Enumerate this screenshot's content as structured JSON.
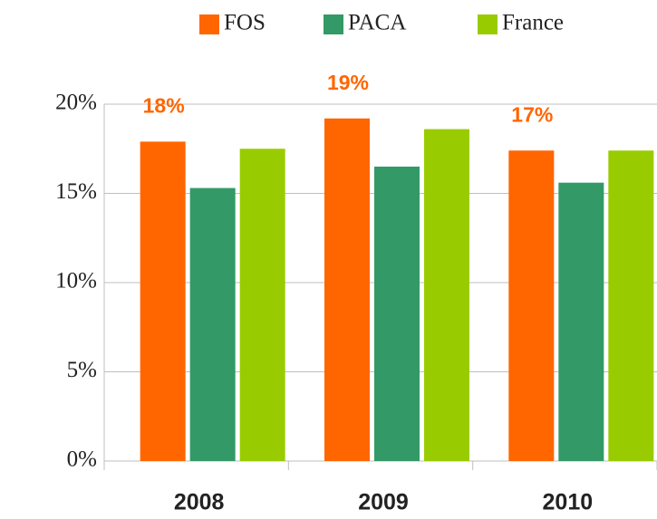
{
  "chart_data": {
    "type": "bar",
    "categories": [
      "2008",
      "2009",
      "2010"
    ],
    "series": [
      {
        "name": "FOS",
        "color": "#ff6600",
        "values": [
          17.9,
          19.2,
          17.4
        ],
        "value_labels": [
          "18%",
          "19%",
          "17%"
        ]
      },
      {
        "name": "PACA",
        "color": "#339966",
        "values": [
          15.3,
          16.5,
          15.6
        ]
      },
      {
        "name": "France",
        "color": "#99cc00",
        "values": [
          17.5,
          18.6,
          17.4
        ]
      }
    ],
    "ylim": [
      0,
      20
    ],
    "yticks": [
      {
        "value": 0,
        "label": "0%"
      },
      {
        "value": 5,
        "label": "5%"
      },
      {
        "value": 10,
        "label": "10%"
      },
      {
        "value": 15,
        "label": "15%"
      },
      {
        "value": 20,
        "label": "20%"
      }
    ],
    "grid": true,
    "legend": "top"
  }
}
